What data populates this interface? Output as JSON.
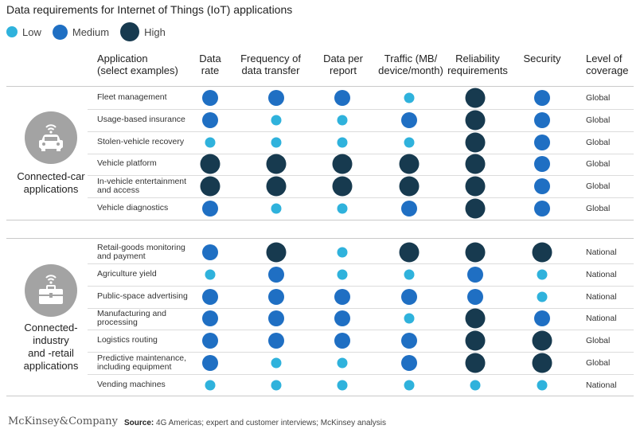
{
  "title": "Data requirements for Internet of Things (IoT) applications",
  "legend": [
    {
      "label": "Low",
      "level": "low"
    },
    {
      "label": "Medium",
      "level": "medium"
    },
    {
      "label": "High",
      "level": "high"
    }
  ],
  "colors": {
    "low": "#2fb2dc",
    "medium": "#1f6fc3",
    "high": "#173a4f"
  },
  "columns": {
    "application": "Application\n(select examples)",
    "data_rate": "Data\nrate",
    "frequency": "Frequency of\ndata transfer",
    "data_per_report": "Data per\nreport",
    "traffic": "Traffic (MB/\ndevice/month)",
    "reliability": "Reliability\nrequirements",
    "security": "Security",
    "coverage": "Level of\ncoverage"
  },
  "groups": [
    {
      "label": "Connected-car\napplications",
      "icon": "car-icon"
    },
    {
      "label": "Connected-\nindustry\nand -retail\napplications",
      "icon": "briefcase-icon"
    }
  ],
  "chart_data": {
    "type": "table",
    "title": "Data requirements for Internet of Things (IoT) applications",
    "metrics": [
      "Data rate",
      "Frequency of data transfer",
      "Data per report",
      "Traffic (MB/device/month)",
      "Reliability requirements",
      "Security"
    ],
    "levels": [
      "low",
      "medium",
      "high"
    ],
    "rows": [
      {
        "group": 0,
        "application": "Fleet management",
        "values": [
          "medium",
          "medium",
          "medium",
          "low",
          "high",
          "medium"
        ],
        "coverage": "Global"
      },
      {
        "group": 0,
        "application": "Usage-based insurance",
        "values": [
          "medium",
          "low",
          "low",
          "medium",
          "high",
          "medium"
        ],
        "coverage": "Global"
      },
      {
        "group": 0,
        "application": "Stolen-vehicle recovery",
        "values": [
          "low",
          "low",
          "low",
          "low",
          "high",
          "medium"
        ],
        "coverage": "Global"
      },
      {
        "group": 0,
        "application": "Vehicle platform",
        "values": [
          "high",
          "high",
          "high",
          "high",
          "high",
          "medium"
        ],
        "coverage": "Global"
      },
      {
        "group": 0,
        "application": "In-vehicle entertainment and access",
        "values": [
          "high",
          "high",
          "high",
          "high",
          "high",
          "medium"
        ],
        "coverage": "Global"
      },
      {
        "group": 0,
        "application": "Vehicle diagnostics",
        "values": [
          "medium",
          "low",
          "low",
          "medium",
          "high",
          "medium"
        ],
        "coverage": "Global"
      },
      {
        "group": 1,
        "application": "Retail-goods monitoring and payment",
        "values": [
          "medium",
          "high",
          "low",
          "high",
          "high",
          "high"
        ],
        "coverage": "National"
      },
      {
        "group": 1,
        "application": "Agriculture yield",
        "values": [
          "low",
          "medium",
          "low",
          "low",
          "medium",
          "low"
        ],
        "coverage": "National"
      },
      {
        "group": 1,
        "application": "Public-space advertising",
        "values": [
          "medium",
          "medium",
          "medium",
          "medium",
          "medium",
          "low"
        ],
        "coverage": "National"
      },
      {
        "group": 1,
        "application": "Manufacturing and processing",
        "values": [
          "medium",
          "medium",
          "medium",
          "low",
          "high",
          "medium"
        ],
        "coverage": "National"
      },
      {
        "group": 1,
        "application": "Logistics routing",
        "values": [
          "medium",
          "medium",
          "medium",
          "medium",
          "high",
          "high"
        ],
        "coverage": "Global"
      },
      {
        "group": 1,
        "application": "Predictive maintenance, including equipment",
        "values": [
          "medium",
          "low",
          "low",
          "medium",
          "high",
          "high"
        ],
        "coverage": "Global"
      },
      {
        "group": 1,
        "application": "Vending machines",
        "values": [
          "low",
          "low",
          "low",
          "low",
          "low",
          "low"
        ],
        "coverage": "National"
      }
    ]
  },
  "footer": {
    "logo": "McKinsey&Company",
    "source_label": "Source:",
    "source_text": "4G Americas; expert and customer interviews; McKinsey analysis"
  }
}
